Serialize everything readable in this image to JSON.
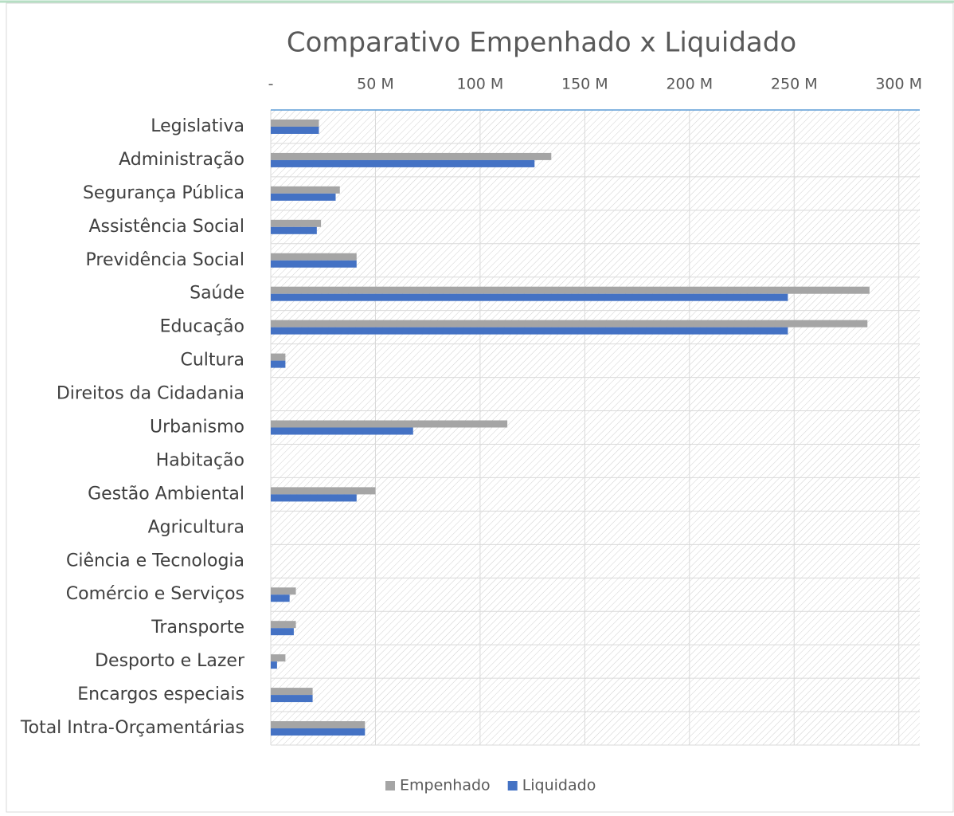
{
  "chart_data": {
    "type": "barh",
    "title": "Comparativo Empenhado x Liquidado",
    "categories": [
      "Legislativa",
      "Administração",
      "Segurança Pública",
      "Assistência Social",
      "Previdência Social",
      "Saúde",
      "Educação",
      "Cultura",
      "Direitos da Cidadania",
      "Urbanismo",
      "Habitação",
      "Gestão Ambiental",
      "Agricultura",
      "Ciência e Tecnologia",
      "Comércio e Serviços",
      "Transporte",
      "Desporto e Lazer",
      "Encargos especiais",
      "Total Intra-Orçamentárias"
    ],
    "series": [
      {
        "name": "Empenhado",
        "color": "#a5a5a5",
        "values": [
          23,
          134,
          33,
          24,
          41,
          286,
          285,
          7,
          0,
          113,
          0,
          50,
          0,
          0,
          12,
          12,
          7,
          20,
          45
        ]
      },
      {
        "name": "Liquidado",
        "color": "#4472c4",
        "values": [
          23,
          126,
          31,
          22,
          41,
          247,
          247,
          7,
          0,
          68,
          0,
          41,
          0,
          0,
          9,
          11,
          3,
          20,
          45
        ]
      }
    ],
    "xlim": [
      0,
      310
    ],
    "xticks": [
      {
        "value": 0,
        "label": "-"
      },
      {
        "value": 50,
        "label": "50 M"
      },
      {
        "value": 100,
        "label": "100 M"
      },
      {
        "value": 150,
        "label": "150 M"
      },
      {
        "value": 200,
        "label": "200 M"
      },
      {
        "value": 250,
        "label": "250 M"
      },
      {
        "value": 300,
        "label": "300 M"
      }
    ],
    "grid": true,
    "legend": "bottom"
  }
}
